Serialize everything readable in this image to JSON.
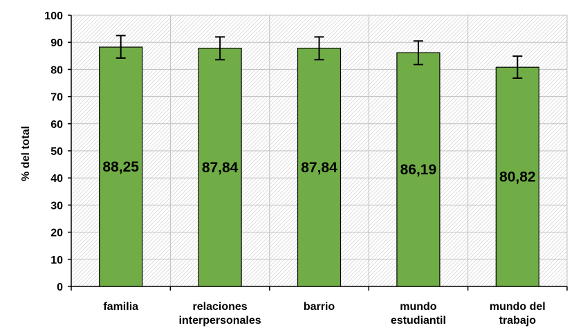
{
  "chart_data": {
    "type": "bar",
    "ylabel": "% del total",
    "xlabel": "",
    "ylim": [
      0,
      100
    ],
    "yticks": [
      0,
      10,
      20,
      30,
      40,
      50,
      60,
      70,
      80,
      90,
      100
    ],
    "grid": true,
    "plot_background": "hatched",
    "categories": [
      [
        "familia"
      ],
      [
        "relaciones",
        "interpersonales"
      ],
      [
        "barrio"
      ],
      [
        "mundo",
        "estudiantil"
      ],
      [
        "mundo del",
        "trabajo"
      ]
    ],
    "values": [
      88.25,
      87.84,
      87.84,
      86.19,
      80.82
    ],
    "data_labels": [
      "88,25",
      "87,84",
      "87,84",
      "86,19",
      "80,82"
    ],
    "error_bars": [
      {
        "low": 84.2,
        "high": 92.5
      },
      {
        "low": 83.6,
        "high": 92.0
      },
      {
        "low": 83.6,
        "high": 92.0
      },
      {
        "low": 81.8,
        "high": 90.5
      },
      {
        "low": 76.8,
        "high": 84.9
      }
    ],
    "colors": {
      "bar_fill": "#70AD47",
      "bar_stroke": "#000000",
      "hatch": "#c8c8c8",
      "grid": "#bfbfbf"
    }
  }
}
